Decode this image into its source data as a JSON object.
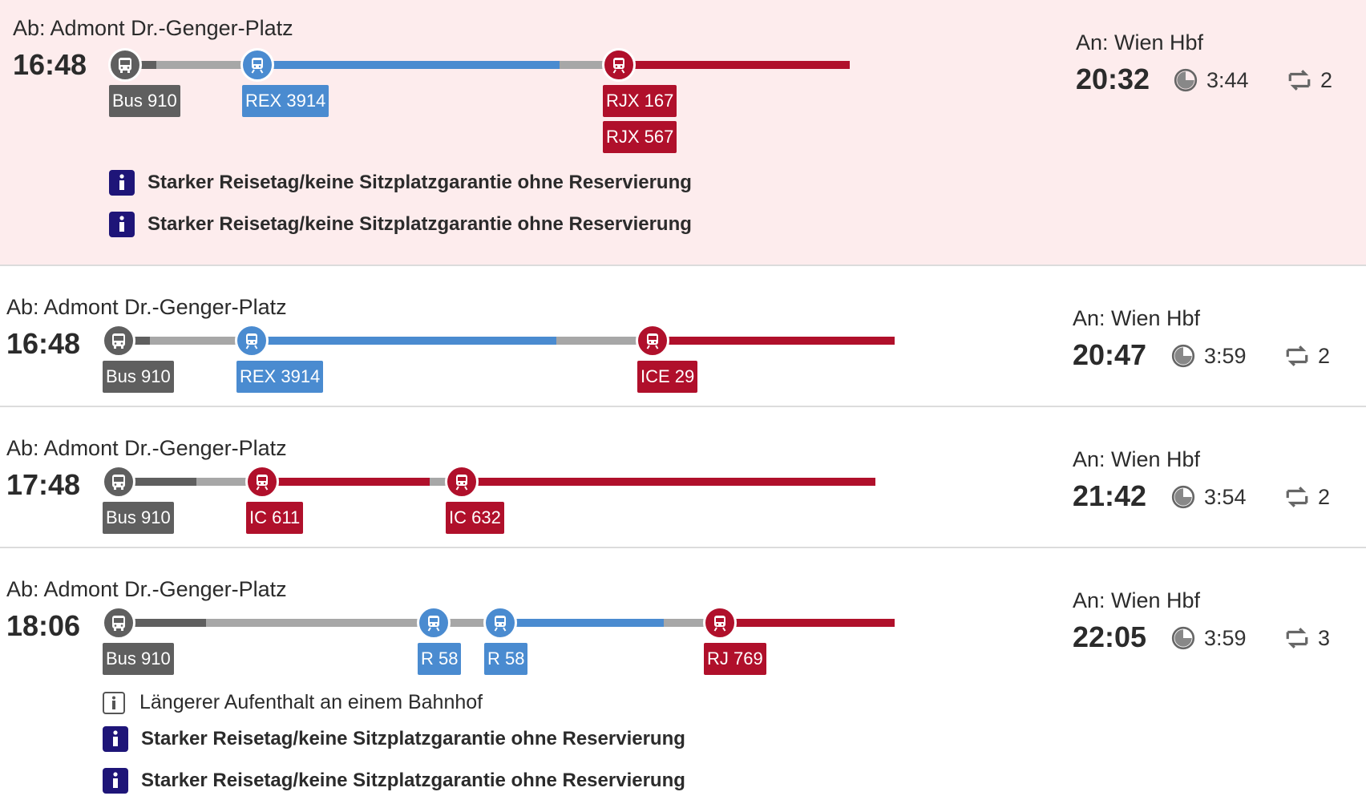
{
  "colors": {
    "bus": "#5f5f5f",
    "regional": "#4a8bd0",
    "long_distance": "#b0102b",
    "walk": "#a7a7a7",
    "highlight_bg": "#fdeced",
    "info_icon": "#1e1578"
  },
  "connections": [
    {
      "from": "Ab: Admont Dr.-Genger-Platz",
      "departure": "16:48",
      "to": "An: Wien Hbf",
      "arrival": "20:32",
      "duration": "3:44",
      "transfers": "2",
      "legs": [
        "Bus 910",
        "REX 3914",
        "RJX 167",
        "RJX 567"
      ],
      "notes": [
        "Starker Reisetag/keine Sitzplatzgarantie ohne Reservierung",
        "Starker Reisetag/keine Sitzplatzgarantie ohne Reservierung"
      ]
    },
    {
      "from": "Ab: Admont Dr.-Genger-Platz",
      "departure": "16:48",
      "to": "An: Wien Hbf",
      "arrival": "20:47",
      "duration": "3:59",
      "transfers": "2",
      "legs": [
        "Bus 910",
        "REX 3914",
        "ICE 29"
      ]
    },
    {
      "from": "Ab: Admont Dr.-Genger-Platz",
      "departure": "17:48",
      "to": "An: Wien Hbf",
      "arrival": "21:42",
      "duration": "3:54",
      "transfers": "2",
      "legs": [
        "Bus 910",
        "IC 611",
        "IC 632"
      ]
    },
    {
      "from": "Ab: Admont Dr.-Genger-Platz",
      "departure": "18:06",
      "to": "An: Wien Hbf",
      "arrival": "22:05",
      "duration": "3:59",
      "transfers": "3",
      "legs": [
        "Bus 910",
        "R 58",
        "R 58",
        "RJ 769"
      ],
      "notes": [
        "Längerer Aufenthalt an einem Bahnhof",
        "Starker Reisetag/keine Sitzplatzgarantie ohne Reservierung",
        "Starker Reisetag/keine Sitzplatzgarantie ohne Reservierung"
      ]
    }
  ]
}
